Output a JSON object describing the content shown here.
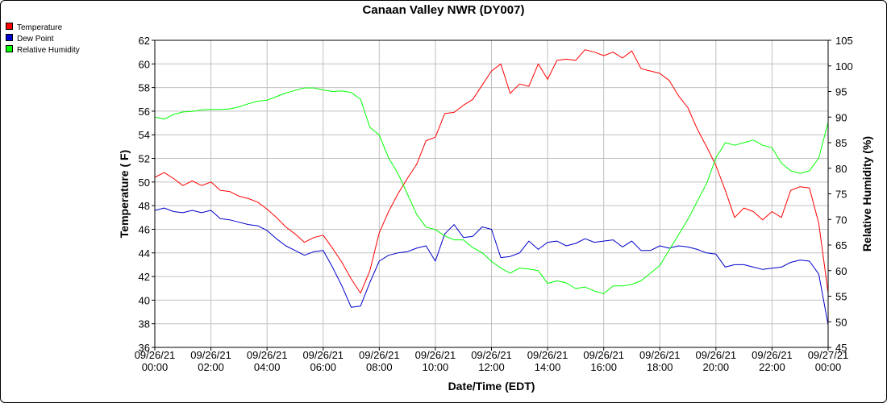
{
  "chart_data": {
    "type": "line",
    "title": "Canaan Valley NWR (DY007)",
    "xlabel": "Date/Time (EDT)",
    "ylabel": "Temperature ( F)",
    "y2label": "Relative Humidity (%)",
    "x_unit": "hours since 09/26/21 00:00",
    "xlim": [
      0,
      24
    ],
    "ylim": [
      36,
      62
    ],
    "y2lim": [
      45,
      105
    ],
    "grid": true,
    "legend_position": "top-left",
    "x_ticks": [
      {
        "value": 0,
        "date": "09/26/21",
        "time": "00:00"
      },
      {
        "value": 2,
        "date": "09/26/21",
        "time": "02:00"
      },
      {
        "value": 4,
        "date": "09/26/21",
        "time": "04:00"
      },
      {
        "value": 6,
        "date": "09/26/21",
        "time": "06:00"
      },
      {
        "value": 8,
        "date": "09/26/21",
        "time": "08:00"
      },
      {
        "value": 10,
        "date": "09/26/21",
        "time": "10:00"
      },
      {
        "value": 12,
        "date": "09/26/21",
        "time": "12:00"
      },
      {
        "value": 14,
        "date": "09/26/21",
        "time": "14:00"
      },
      {
        "value": 16,
        "date": "09/26/21",
        "time": "16:00"
      },
      {
        "value": 18,
        "date": "09/26/21",
        "time": "18:00"
      },
      {
        "value": 20,
        "date": "09/26/21",
        "time": "20:00"
      },
      {
        "value": 22,
        "date": "09/26/21",
        "time": "22:00"
      },
      {
        "value": 24,
        "date": "09/27/21",
        "time": "00:00"
      }
    ],
    "y_ticks": [
      "36",
      "38",
      "40",
      "42",
      "44",
      "46",
      "48",
      "50",
      "52",
      "54",
      "56",
      "58",
      "60",
      "62"
    ],
    "y2_ticks": [
      "45",
      "50",
      "55",
      "60",
      "65",
      "70",
      "75",
      "80",
      "85",
      "90",
      "95",
      "100",
      "105"
    ],
    "series": [
      {
        "name": "Temperature",
        "axis": "left",
        "color": "#ff0000",
        "x": [
          0,
          0.333,
          0.667,
          1,
          1.333,
          1.667,
          2,
          2.333,
          2.667,
          3,
          3.333,
          3.667,
          4,
          4.333,
          4.667,
          5,
          5.333,
          5.667,
          6,
          6.333,
          6.667,
          7,
          7.333,
          7.667,
          8,
          8.333,
          8.667,
          9,
          9.333,
          9.667,
          10,
          10.333,
          10.667,
          11,
          11.333,
          11.667,
          12,
          12.333,
          12.667,
          13,
          13.333,
          13.667,
          14,
          14.333,
          14.667,
          15,
          15.333,
          15.667,
          16,
          16.333,
          16.667,
          17,
          17.333,
          17.667,
          18,
          18.333,
          18.667,
          19,
          19.333,
          19.667,
          20,
          20.333,
          20.667,
          21,
          21.333,
          21.667,
          22,
          22.333,
          22.667,
          23,
          23.333,
          23.667,
          24
        ],
        "values": [
          50.4,
          50.8,
          50.3,
          49.7,
          50.1,
          49.7,
          50.0,
          49.3,
          49.2,
          48.8,
          48.6,
          48.3,
          47.7,
          47.0,
          46.2,
          45.6,
          44.9,
          45.3,
          45.5,
          44.4,
          43.2,
          41.8,
          40.6,
          42.5,
          45.7,
          47.5,
          49.0,
          50.3,
          51.5,
          53.5,
          53.8,
          55.8,
          55.9,
          56.5,
          57.0,
          58.2,
          59.4,
          60.0,
          57.5,
          58.3,
          58.1,
          60.0,
          58.7,
          60.3,
          60.4,
          60.3,
          61.2,
          61.0,
          60.7,
          61.0,
          60.5,
          61.1,
          59.6,
          59.4,
          59.2,
          58.6,
          57.3,
          56.3,
          54.5,
          53.0,
          51.4,
          49.3,
          47.0,
          47.8,
          47.5,
          46.8,
          47.5,
          47.0,
          49.3,
          49.6,
          49.5,
          46.5,
          40.6
        ]
      },
      {
        "name": "Dew Point",
        "axis": "left",
        "color": "#0000cc",
        "x": [
          0,
          0.333,
          0.667,
          1,
          1.333,
          1.667,
          2,
          2.333,
          2.667,
          3,
          3.333,
          3.667,
          4,
          4.333,
          4.667,
          5,
          5.333,
          5.667,
          6,
          6.333,
          6.667,
          7,
          7.333,
          7.667,
          8,
          8.333,
          8.667,
          9,
          9.333,
          9.667,
          10,
          10.333,
          10.667,
          11,
          11.333,
          11.667,
          12,
          12.333,
          12.667,
          13,
          13.333,
          13.667,
          14,
          14.333,
          14.667,
          15,
          15.333,
          15.667,
          16,
          16.333,
          16.667,
          17,
          17.333,
          17.667,
          18,
          18.333,
          18.667,
          19,
          19.333,
          19.667,
          20,
          20.333,
          20.667,
          21,
          21.333,
          21.667,
          22,
          22.333,
          22.667,
          23,
          23.333,
          23.667,
          24
        ],
        "values": [
          47.6,
          47.8,
          47.5,
          47.4,
          47.6,
          47.4,
          47.6,
          46.9,
          46.8,
          46.6,
          46.4,
          46.3,
          45.9,
          45.2,
          44.6,
          44.2,
          43.8,
          44.1,
          44.2,
          42.8,
          41.2,
          39.4,
          39.5,
          41.5,
          43.3,
          43.8,
          44.0,
          44.1,
          44.4,
          44.6,
          43.3,
          45.6,
          46.4,
          45.3,
          45.4,
          46.2,
          46.0,
          43.6,
          43.7,
          44.0,
          45.0,
          44.3,
          44.9,
          45.0,
          44.6,
          44.8,
          45.2,
          44.9,
          45.0,
          45.1,
          44.5,
          45.0,
          44.2,
          44.2,
          44.6,
          44.4,
          44.6,
          44.5,
          44.3,
          44.0,
          43.9,
          42.8,
          43.0,
          43.0,
          42.8,
          42.6,
          42.7,
          42.8,
          43.2,
          43.4,
          43.3,
          42.2,
          37.9
        ]
      },
      {
        "name": "Relative Humidity",
        "axis": "right",
        "color": "#00ff00",
        "x": [
          0,
          0.333,
          0.667,
          1,
          1.333,
          1.667,
          2,
          2.333,
          2.667,
          3,
          3.333,
          3.667,
          4,
          4.333,
          4.667,
          5,
          5.333,
          5.667,
          6,
          6.333,
          6.667,
          7,
          7.333,
          7.667,
          8,
          8.333,
          8.667,
          9,
          9.333,
          9.667,
          10,
          10.333,
          10.667,
          11,
          11.333,
          11.667,
          12,
          12.333,
          12.667,
          13,
          13.333,
          13.667,
          14,
          14.333,
          14.667,
          15,
          15.333,
          15.667,
          16,
          16.333,
          16.667,
          17,
          17.333,
          17.667,
          18,
          18.333,
          18.667,
          19,
          19.333,
          19.667,
          20,
          20.333,
          20.667,
          21,
          21.333,
          21.667,
          22,
          22.333,
          22.667,
          23,
          23.333,
          23.667,
          24
        ],
        "values": [
          90.0,
          89.6,
          90.5,
          91.0,
          91.1,
          91.4,
          91.5,
          91.5,
          91.6,
          92.0,
          92.6,
          93.1,
          93.3,
          94.0,
          94.7,
          95.2,
          95.7,
          95.7,
          95.3,
          95.0,
          95.1,
          94.8,
          93.5,
          88.0,
          86.5,
          82.0,
          79.0,
          75.0,
          71.0,
          68.5,
          68.0,
          66.8,
          66.0,
          66.0,
          64.5,
          63.5,
          61.8,
          60.5,
          59.5,
          60.5,
          60.3,
          60.0,
          57.5,
          58.0,
          57.6,
          56.5,
          56.8,
          56.0,
          55.5,
          57.0,
          57.0,
          57.3,
          58.0,
          59.5,
          61.0,
          64.0,
          67.0,
          70.0,
          73.5,
          77.0,
          82.0,
          85.0,
          84.5,
          85.0,
          85.5,
          84.5,
          84.0,
          81.0,
          79.5,
          79.0,
          79.5,
          82.0,
          89.0
        ]
      }
    ]
  }
}
